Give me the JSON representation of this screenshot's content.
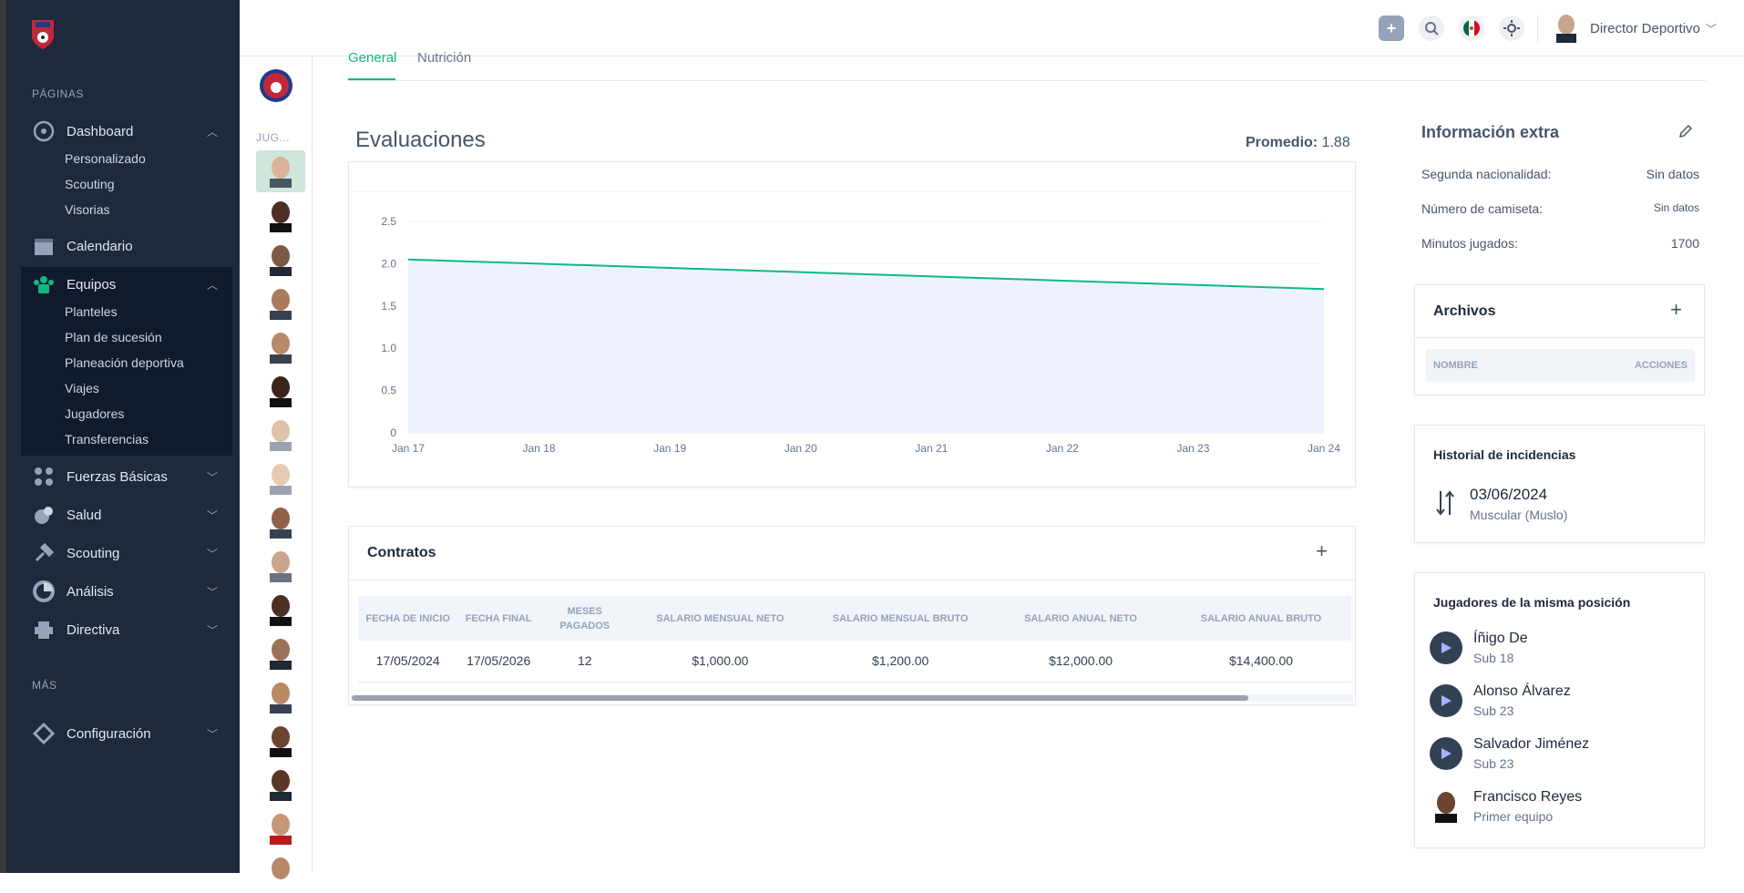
{
  "sidebar": {
    "pages_label": "PÁGINAS",
    "more_label": "MÁS",
    "items": {
      "dashboard": {
        "label": "Dashboard",
        "sub": [
          "Personalizado",
          "Scouting",
          "Visorias"
        ]
      },
      "calendario": {
        "label": "Calendario"
      },
      "equipos": {
        "label": "Equipos",
        "sub": [
          "Planteles",
          "Plan de sucesión",
          "Planeación deportiva",
          "Viajes",
          "Jugadores",
          "Transferencias"
        ]
      },
      "fuerzas": {
        "label": "Fuerzas Básicas"
      },
      "salud": {
        "label": "Salud"
      },
      "scouting": {
        "label": "Scouting"
      },
      "analisis": {
        "label": "Análisis"
      },
      "directiva": {
        "label": "Directiva"
      },
      "configuracion": {
        "label": "Configuración"
      }
    }
  },
  "strip": {
    "label": "JUG..."
  },
  "topbar": {
    "user_name": "Director Deportivo"
  },
  "tabs": [
    "General",
    "Nutrición"
  ],
  "evaluaciones": {
    "title": "Evaluaciones",
    "promedio_label": "Promedio:",
    "promedio_value": "1.88"
  },
  "chart_data": {
    "type": "area",
    "x": [
      "Jan 17",
      "Jan 18",
      "Jan 19",
      "Jan 20",
      "Jan 21",
      "Jan 22",
      "Jan 23",
      "Jan 24"
    ],
    "series": [
      {
        "values": [
          2.05,
          2.0,
          1.95,
          1.9,
          1.85,
          1.8,
          1.75,
          1.7
        ]
      }
    ],
    "yticks": [
      "2.5",
      "2.0",
      "1.5",
      "1.0",
      "0.5",
      "0"
    ],
    "ylim": [
      0,
      2.5
    ],
    "grid": true,
    "colors": {
      "line": "#10b981",
      "fill": "#eef2ff"
    }
  },
  "contratos": {
    "title": "Contratos",
    "columns": [
      "FECHA DE INICIO",
      "FECHA FINAL",
      "MESES PAGADOS",
      "SALARIO MENSUAL NETO",
      "SALARIO MENSUAL BRUTO",
      "SALARIO ANUAL NETO",
      "SALARIO ANUAL BRUTO"
    ],
    "rows": [
      [
        "17/05/2024",
        "17/05/2026",
        "12",
        "$1,000.00",
        "$1,200.00",
        "$12,000.00",
        "$14,400.00"
      ]
    ]
  },
  "info_extra": {
    "title": "Información extra",
    "rows": [
      {
        "label": "Segunda nacionalidad:",
        "value": "Sin datos"
      },
      {
        "label": "Número de camiseta:",
        "value": "Sin datos"
      },
      {
        "label": "Minutos jugados:",
        "value": "1700"
      }
    ]
  },
  "archivos": {
    "title": "Archivos",
    "col_nombre": "NOMBRE",
    "col_acciones": "ACCIONES"
  },
  "incidencias": {
    "title": "Historial de incidencias",
    "date": "03/06/2024",
    "desc": "Muscular (Muslo)"
  },
  "misma_posicion": {
    "title": "Jugadores de la misma posición",
    "players": [
      {
        "name": "Íñigo De",
        "team": "Sub 18"
      },
      {
        "name": "Alonso Álvarez",
        "team": "Sub 23"
      },
      {
        "name": "Salvador Jiménez",
        "team": "Sub 23"
      },
      {
        "name": "Francisco Reyes",
        "team": "Primer equipo"
      }
    ]
  },
  "colors": {
    "sidebar": "#1e293b",
    "accent": "#10b981"
  }
}
